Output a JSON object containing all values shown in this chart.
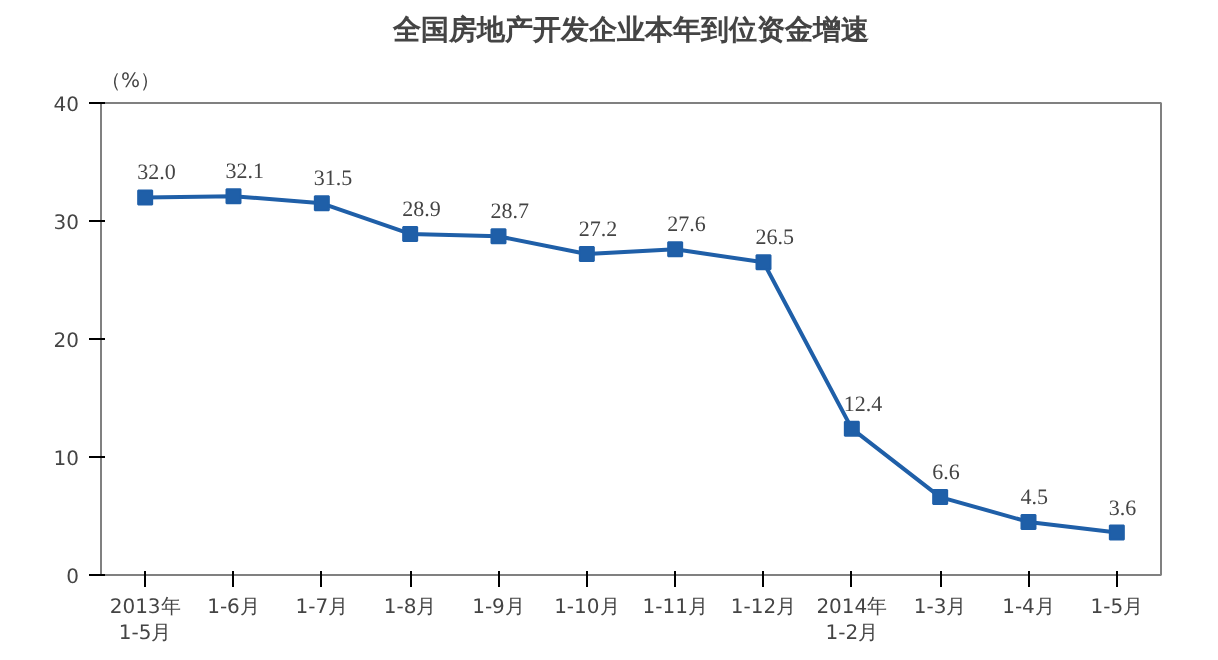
{
  "chart_data": {
    "type": "line",
    "title": "全国房地产开发企业本年到位资金增速",
    "ylabel": "（%）",
    "categories": [
      "2013年\n1-5月",
      "1-6月",
      "1-7月",
      "1-8月",
      "1-9月",
      "1-10月",
      "1-11月",
      "1-12月",
      "2014年\n1-2月",
      "1-3月",
      "1-4月",
      "1-5月"
    ],
    "series": [
      {
        "color": "#1f5fa8",
        "values": [
          32.0,
          32.1,
          31.5,
          28.9,
          28.7,
          27.2,
          27.6,
          26.5,
          12.4,
          6.6,
          4.5,
          3.6
        ]
      }
    ],
    "value_labels": [
      "32.0",
      "32.1",
      "31.5",
      "28.9",
      "28.7",
      "27.2",
      "27.6",
      "26.5",
      "12.4",
      "6.6",
      "4.5",
      "3.6"
    ],
    "ylim": [
      0,
      40
    ],
    "yticks": [
      0,
      10,
      20,
      30,
      40
    ],
    "marker": "square",
    "line_style": "solid"
  }
}
